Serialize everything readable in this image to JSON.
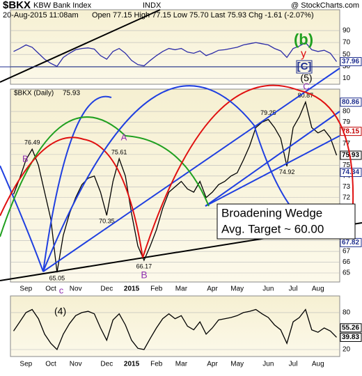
{
  "header": {
    "symbol": "$BKX",
    "name": "KBW Bank Index",
    "exchange": "INDX",
    "datetime": "20-Aug-2015 11:08am",
    "quote": "Open 77.15   High 77.15   Low 75.70   Last 75.93   Chg -1.61 (-2.07%)",
    "source": "@ StockCharts.com"
  },
  "chart_data": [
    {
      "type": "line",
      "series": [
        {
          "name": null,
          "color": "#2c2ca8",
          "values": [
            55,
            60,
            66,
            62,
            52,
            42,
            35,
            30,
            45,
            52,
            58,
            60,
            61,
            59,
            48,
            42,
            55,
            60,
            52,
            40,
            33,
            31,
            40,
            48,
            55,
            60,
            58,
            60,
            54,
            52,
            56,
            48,
            52,
            57,
            58,
            60,
            62,
            66,
            68,
            70,
            68,
            66,
            60,
            56,
            45,
            60,
            64,
            70,
            58,
            55,
            57,
            52,
            38
          ]
        }
      ],
      "ylim": [
        0,
        125
      ],
      "yticks": [
        10,
        30,
        50,
        70,
        90
      ],
      "levels": [
        {
          "value": 37.96,
          "color": "#1f2f8f"
        }
      ],
      "annotations": [
        "(b)",
        "y",
        "[C]",
        "(5)"
      ]
    },
    {
      "type": "line",
      "title": "$BKX (Daily)",
      "categories": [
        null,
        null,
        "Sep",
        null,
        null,
        null,
        "Oct",
        null,
        null,
        null,
        "Nov",
        null,
        null,
        null,
        null,
        "Dec",
        null,
        null,
        null,
        "2015",
        null,
        null,
        null,
        "Feb",
        null,
        null,
        null,
        "Mar",
        null,
        null,
        null,
        null,
        "Apr",
        null,
        null,
        null,
        "May",
        null,
        null,
        null,
        null,
        "Jun",
        null,
        null,
        null,
        "Jul",
        null,
        null,
        null,
        "Aug",
        null,
        null,
        null
      ],
      "series": [
        {
          "name": "$BKX (Daily)",
          "color": "#000000",
          "values": [
            72.3,
            73.8,
            75.5,
            76.49,
            75.0,
            72.5,
            70.0,
            65.05,
            68.5,
            70.5,
            72.0,
            73.2,
            73.8,
            74.0,
            72.5,
            70.35,
            73.5,
            75.61,
            74.0,
            70.5,
            67.5,
            66.17,
            67.5,
            69.0,
            71.0,
            72.5,
            73.0,
            73.5,
            72.8,
            72.5,
            73.5,
            72.0,
            72.5,
            73.2,
            73.5,
            74.0,
            74.3,
            75.5,
            76.8,
            78.5,
            79.0,
            79.25,
            78.5,
            77.5,
            74.92,
            78.5,
            79.5,
            80.87,
            78.5,
            78.0,
            78.3,
            77.56,
            75.93
          ],
          "value_labels": [
            null,
            null,
            null,
            "76.49",
            null,
            null,
            null,
            "65.05",
            null,
            null,
            null,
            null,
            null,
            null,
            null,
            "70.35",
            null,
            "75.61",
            null,
            null,
            null,
            "66.17",
            null,
            null,
            null,
            null,
            null,
            null,
            null,
            null,
            null,
            null,
            null,
            null,
            null,
            null,
            null,
            null,
            null,
            null,
            null,
            "79.25",
            null,
            null,
            "74.92",
            null,
            null,
            "80.87",
            null,
            null,
            null,
            null,
            null
          ]
        }
      ],
      "ylim": [
        64.16,
        82.07
      ],
      "yticks": [
        65,
        66,
        67,
        68,
        69,
        70,
        71,
        72,
        73,
        74,
        75,
        76,
        77,
        78,
        79,
        80
      ],
      "levels": [
        {
          "value": 80.86,
          "color": "#1f2f8f"
        },
        {
          "value": 78.15,
          "color": "#c00000"
        },
        {
          "value": 75.93,
          "color": "#000000"
        },
        {
          "value": 74.34,
          "color": "#1f2f8f"
        },
        {
          "value": 67.82,
          "color": "#1f2f8f"
        }
      ],
      "annotations": [
        "B",
        "A",
        "C",
        "B",
        "c",
        "Broadening Wedge",
        "Avg. Target ~ 60.00"
      ]
    },
    {
      "type": "line",
      "categories": [
        null,
        null,
        "Sep",
        null,
        null,
        null,
        "Oct",
        null,
        null,
        null,
        "Nov",
        null,
        null,
        null,
        null,
        "Dec",
        null,
        null,
        null,
        "2015",
        null,
        null,
        null,
        "Feb",
        null,
        null,
        null,
        "Mar",
        null,
        null,
        null,
        null,
        "Apr",
        null,
        null,
        null,
        "May",
        null,
        null,
        null,
        null,
        "Jun",
        null,
        null,
        null,
        "Jul",
        null,
        null,
        null,
        "Aug",
        null,
        null,
        null
      ],
      "series": [
        {
          "name": null,
          "color": "#000000",
          "values": [
            50,
            65,
            80,
            85,
            70,
            45,
            30,
            20,
            45,
            62,
            75,
            80,
            82,
            78,
            55,
            35,
            68,
            78,
            60,
            35,
            22,
            20,
            38,
            55,
            70,
            78,
            70,
            75,
            58,
            52,
            65,
            45,
            55,
            68,
            70,
            72,
            75,
            80,
            82,
            85,
            78,
            72,
            60,
            52,
            30,
            65,
            72,
            85,
            52,
            48,
            55,
            50,
            39.83
          ]
        }
      ],
      "ylim": [
        8.7,
        107
      ],
      "yticks": [
        20,
        80
      ],
      "levels": [
        {
          "value": 55.26,
          "color": "#000000"
        },
        {
          "value": 39.83,
          "color": "#000000"
        }
      ],
      "annotations": [
        "(4)"
      ]
    }
  ]
}
